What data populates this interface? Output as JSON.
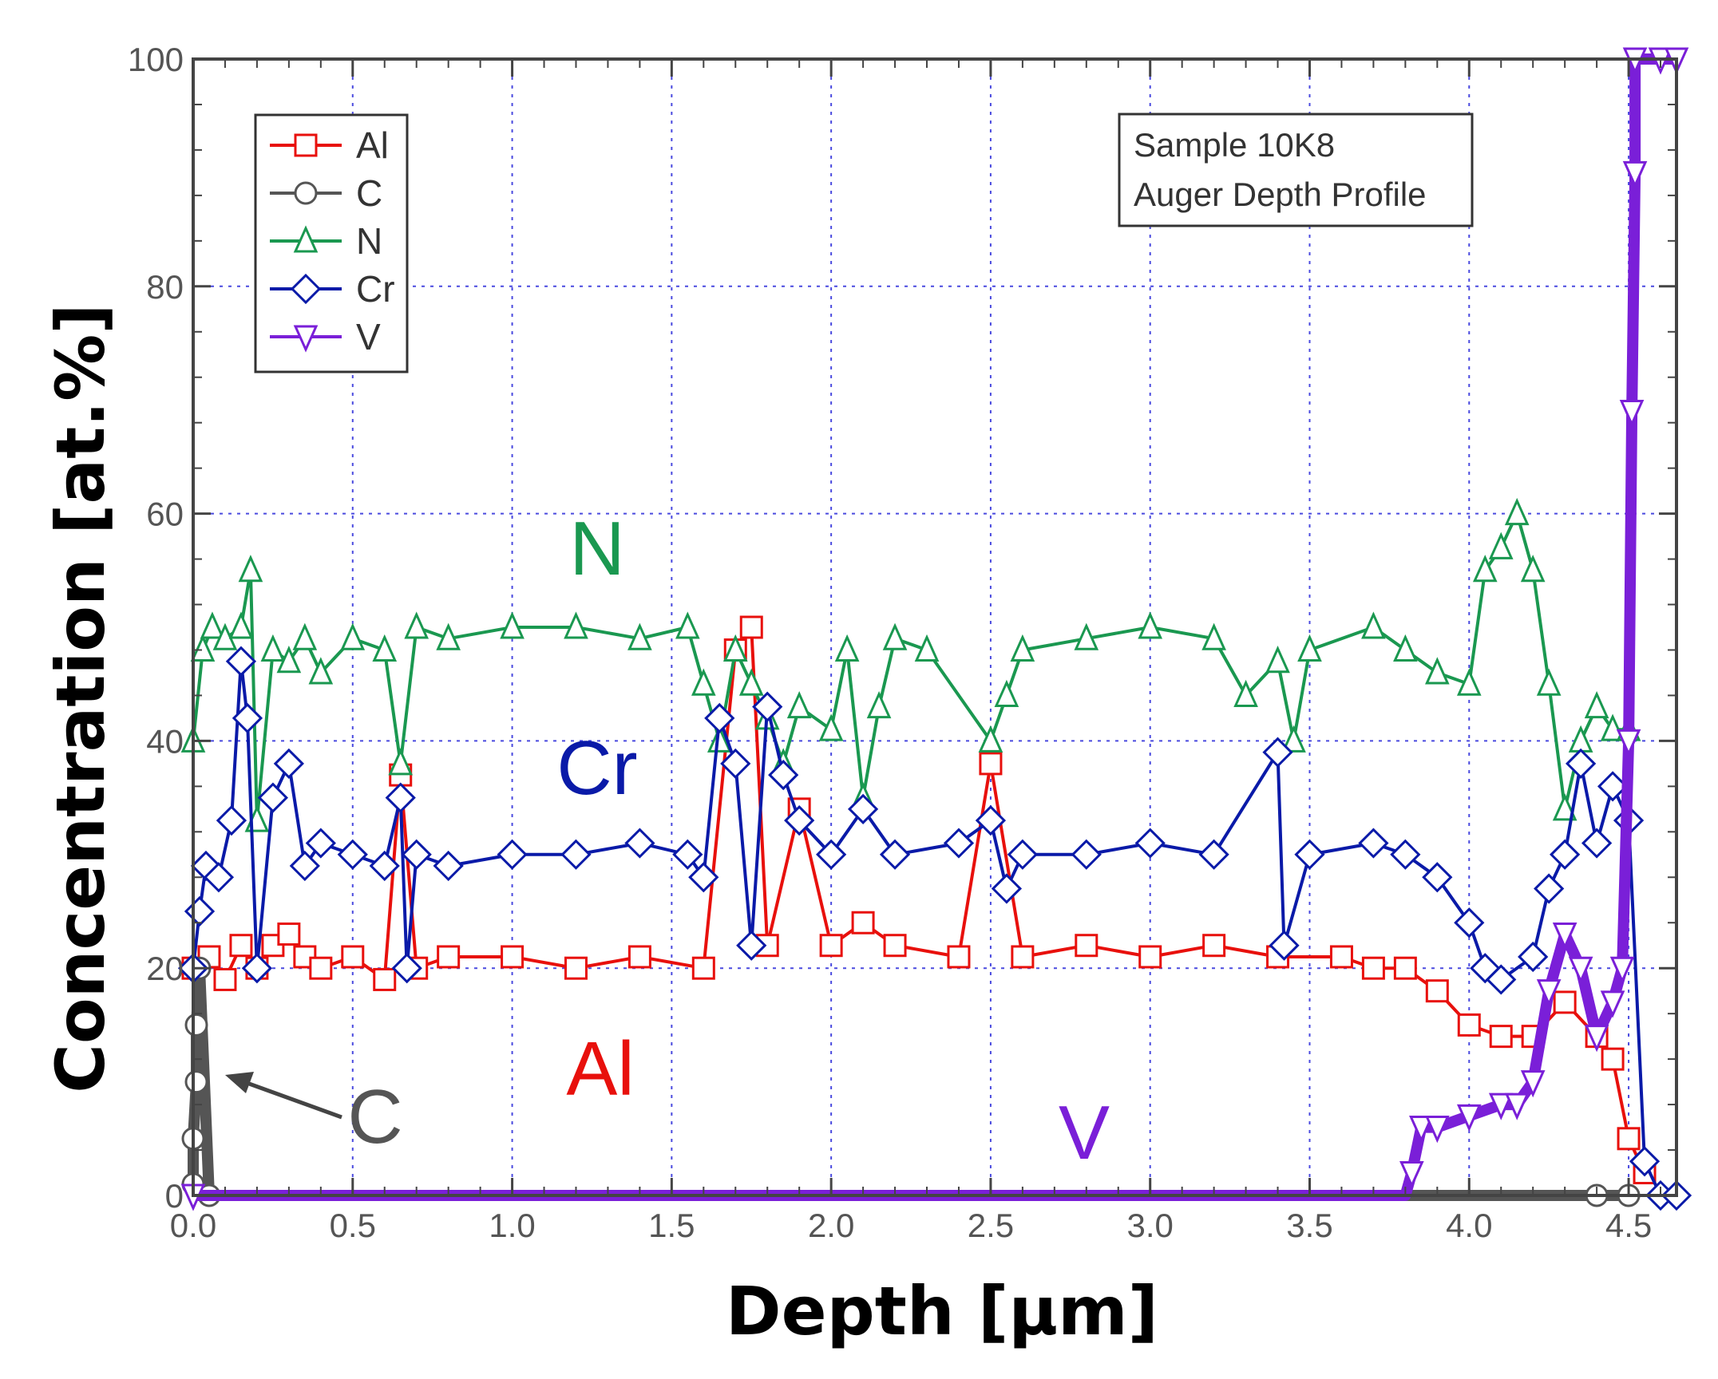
{
  "chart_data": {
    "type": "scatter",
    "xlabel": "Depth [μm]",
    "ylabel": "Concentration [at.%]",
    "xlim": [
      0,
      4.65
    ],
    "ylim": [
      0,
      100
    ],
    "x_ticks": [
      "0.0",
      "0.5",
      "1.0",
      "1.5",
      "2.0",
      "2.5",
      "3.0",
      "3.5",
      "4.0",
      "4.5"
    ],
    "y_ticks": [
      "0",
      "20",
      "40",
      "60",
      "80",
      "100"
    ],
    "grid": true,
    "legend_position": "top-left",
    "infobox": {
      "line1": "Sample 10K8",
      "line2": "Auger Depth Profile"
    },
    "series": [
      {
        "name": "Al",
        "label": "Al",
        "marker": "square",
        "color": "#e8100c",
        "points": [
          [
            0.0,
            20
          ],
          [
            0.05,
            21
          ],
          [
            0.1,
            19
          ],
          [
            0.15,
            22
          ],
          [
            0.2,
            20
          ],
          [
            0.25,
            22
          ],
          [
            0.3,
            23
          ],
          [
            0.35,
            21
          ],
          [
            0.4,
            20
          ],
          [
            0.5,
            21
          ],
          [
            0.6,
            19
          ],
          [
            0.65,
            37
          ],
          [
            0.7,
            20
          ],
          [
            0.8,
            21
          ],
          [
            1.0,
            21
          ],
          [
            1.2,
            20
          ],
          [
            1.4,
            21
          ],
          [
            1.6,
            20
          ],
          [
            1.7,
            48
          ],
          [
            1.75,
            50
          ],
          [
            1.8,
            22
          ],
          [
            1.9,
            34
          ],
          [
            2.0,
            22
          ],
          [
            2.1,
            24
          ],
          [
            2.2,
            22
          ],
          [
            2.4,
            21
          ],
          [
            2.5,
            38
          ],
          [
            2.6,
            21
          ],
          [
            2.8,
            22
          ],
          [
            3.0,
            21
          ],
          [
            3.2,
            22
          ],
          [
            3.4,
            21
          ],
          [
            3.6,
            21
          ],
          [
            3.7,
            20
          ],
          [
            3.8,
            20
          ],
          [
            3.9,
            18
          ],
          [
            4.0,
            15
          ],
          [
            4.1,
            14
          ],
          [
            4.2,
            14
          ],
          [
            4.3,
            17
          ],
          [
            4.4,
            14
          ],
          [
            4.45,
            12
          ],
          [
            4.5,
            5
          ],
          [
            4.55,
            2
          ]
        ]
      },
      {
        "name": "C",
        "label": "C",
        "marker": "circle",
        "color": "#555555",
        "points": [
          [
            0.0,
            1
          ],
          [
            0.0,
            5
          ],
          [
            0.01,
            10
          ],
          [
            0.01,
            15
          ],
          [
            0.02,
            20
          ],
          [
            0.05,
            0
          ],
          [
            0.5,
            0
          ],
          [
            1.0,
            0
          ],
          [
            1.5,
            0
          ],
          [
            2.0,
            0
          ],
          [
            2.5,
            0
          ],
          [
            3.0,
            0
          ],
          [
            3.5,
            0
          ],
          [
            3.8,
            0
          ],
          [
            3.9,
            0
          ],
          [
            4.0,
            0
          ],
          [
            4.1,
            0
          ],
          [
            4.2,
            0
          ],
          [
            4.3,
            0
          ],
          [
            4.4,
            0
          ],
          [
            4.5,
            0
          ]
        ]
      },
      {
        "name": "N",
        "label": "N",
        "marker": "triangle-up",
        "color": "#1a9850",
        "points": [
          [
            0.0,
            40
          ],
          [
            0.03,
            48
          ],
          [
            0.06,
            50
          ],
          [
            0.1,
            49
          ],
          [
            0.15,
            50
          ],
          [
            0.18,
            55
          ],
          [
            0.2,
            33
          ],
          [
            0.25,
            48
          ],
          [
            0.3,
            47
          ],
          [
            0.35,
            49
          ],
          [
            0.4,
            46
          ],
          [
            0.5,
            49
          ],
          [
            0.6,
            48
          ],
          [
            0.65,
            38
          ],
          [
            0.7,
            50
          ],
          [
            0.8,
            49
          ],
          [
            1.0,
            50
          ],
          [
            1.2,
            50
          ],
          [
            1.4,
            49
          ],
          [
            1.55,
            50
          ],
          [
            1.6,
            45
          ],
          [
            1.65,
            40
          ],
          [
            1.7,
            48
          ],
          [
            1.75,
            45
          ],
          [
            1.8,
            42
          ],
          [
            1.85,
            38
          ],
          [
            1.9,
            43
          ],
          [
            2.0,
            41
          ],
          [
            2.05,
            48
          ],
          [
            2.1,
            35
          ],
          [
            2.15,
            43
          ],
          [
            2.2,
            49
          ],
          [
            2.3,
            48
          ],
          [
            2.5,
            40
          ],
          [
            2.55,
            44
          ],
          [
            2.6,
            48
          ],
          [
            2.8,
            49
          ],
          [
            3.0,
            50
          ],
          [
            3.2,
            49
          ],
          [
            3.3,
            44
          ],
          [
            3.4,
            47
          ],
          [
            3.45,
            40
          ],
          [
            3.5,
            48
          ],
          [
            3.7,
            50
          ],
          [
            3.8,
            48
          ],
          [
            3.9,
            46
          ],
          [
            4.0,
            45
          ],
          [
            4.05,
            55
          ],
          [
            4.1,
            57
          ],
          [
            4.15,
            60
          ],
          [
            4.2,
            55
          ],
          [
            4.25,
            45
          ],
          [
            4.3,
            34
          ],
          [
            4.35,
            40
          ],
          [
            4.4,
            43
          ],
          [
            4.45,
            41
          ],
          [
            4.5,
            41
          ]
        ]
      },
      {
        "name": "Cr",
        "label": "Cr",
        "marker": "diamond",
        "color": "#0a1aa8",
        "points": [
          [
            0.0,
            20
          ],
          [
            0.02,
            25
          ],
          [
            0.04,
            29
          ],
          [
            0.08,
            28
          ],
          [
            0.12,
            33
          ],
          [
            0.15,
            47
          ],
          [
            0.17,
            42
          ],
          [
            0.2,
            20
          ],
          [
            0.25,
            35
          ],
          [
            0.3,
            38
          ],
          [
            0.35,
            29
          ],
          [
            0.4,
            31
          ],
          [
            0.5,
            30
          ],
          [
            0.6,
            29
          ],
          [
            0.65,
            35
          ],
          [
            0.67,
            20
          ],
          [
            0.7,
            30
          ],
          [
            0.8,
            29
          ],
          [
            1.0,
            30
          ],
          [
            1.2,
            30
          ],
          [
            1.4,
            31
          ],
          [
            1.55,
            30
          ],
          [
            1.6,
            28
          ],
          [
            1.65,
            42
          ],
          [
            1.7,
            38
          ],
          [
            1.75,
            22
          ],
          [
            1.8,
            43
          ],
          [
            1.85,
            37
          ],
          [
            1.9,
            33
          ],
          [
            2.0,
            30
          ],
          [
            2.1,
            34
          ],
          [
            2.2,
            30
          ],
          [
            2.4,
            31
          ],
          [
            2.5,
            33
          ],
          [
            2.55,
            27
          ],
          [
            2.6,
            30
          ],
          [
            2.8,
            30
          ],
          [
            3.0,
            31
          ],
          [
            3.2,
            30
          ],
          [
            3.4,
            39
          ],
          [
            3.42,
            22
          ],
          [
            3.5,
            30
          ],
          [
            3.7,
            31
          ],
          [
            3.8,
            30
          ],
          [
            3.9,
            28
          ],
          [
            4.0,
            24
          ],
          [
            4.05,
            20
          ],
          [
            4.1,
            19
          ],
          [
            4.2,
            21
          ],
          [
            4.25,
            27
          ],
          [
            4.3,
            30
          ],
          [
            4.35,
            38
          ],
          [
            4.4,
            31
          ],
          [
            4.45,
            36
          ],
          [
            4.5,
            33
          ],
          [
            4.55,
            3
          ],
          [
            4.6,
            0
          ],
          [
            4.65,
            0
          ]
        ]
      },
      {
        "name": "V",
        "label": "V",
        "marker": "triangle-down",
        "color": "#7a1fd8",
        "points": [
          [
            0.0,
            0
          ],
          [
            0.5,
            0
          ],
          [
            1.0,
            0
          ],
          [
            1.5,
            0
          ],
          [
            2.0,
            0
          ],
          [
            2.5,
            0
          ],
          [
            3.0,
            0
          ],
          [
            3.5,
            0
          ],
          [
            3.8,
            0
          ],
          [
            3.82,
            2
          ],
          [
            3.85,
            6
          ],
          [
            3.9,
            6
          ],
          [
            4.0,
            7
          ],
          [
            4.1,
            8
          ],
          [
            4.15,
            8
          ],
          [
            4.2,
            10
          ],
          [
            4.25,
            18
          ],
          [
            4.3,
            23
          ],
          [
            4.35,
            20
          ],
          [
            4.4,
            14
          ],
          [
            4.45,
            17
          ],
          [
            4.48,
            20
          ],
          [
            4.5,
            40
          ],
          [
            4.51,
            69
          ],
          [
            4.52,
            90
          ],
          [
            4.52,
            100
          ],
          [
            4.6,
            100
          ],
          [
            4.65,
            100
          ]
        ]
      }
    ],
    "annotations": {
      "N": "N",
      "Cr": "Cr",
      "Al": "Al",
      "C": "C",
      "V": "V"
    }
  }
}
